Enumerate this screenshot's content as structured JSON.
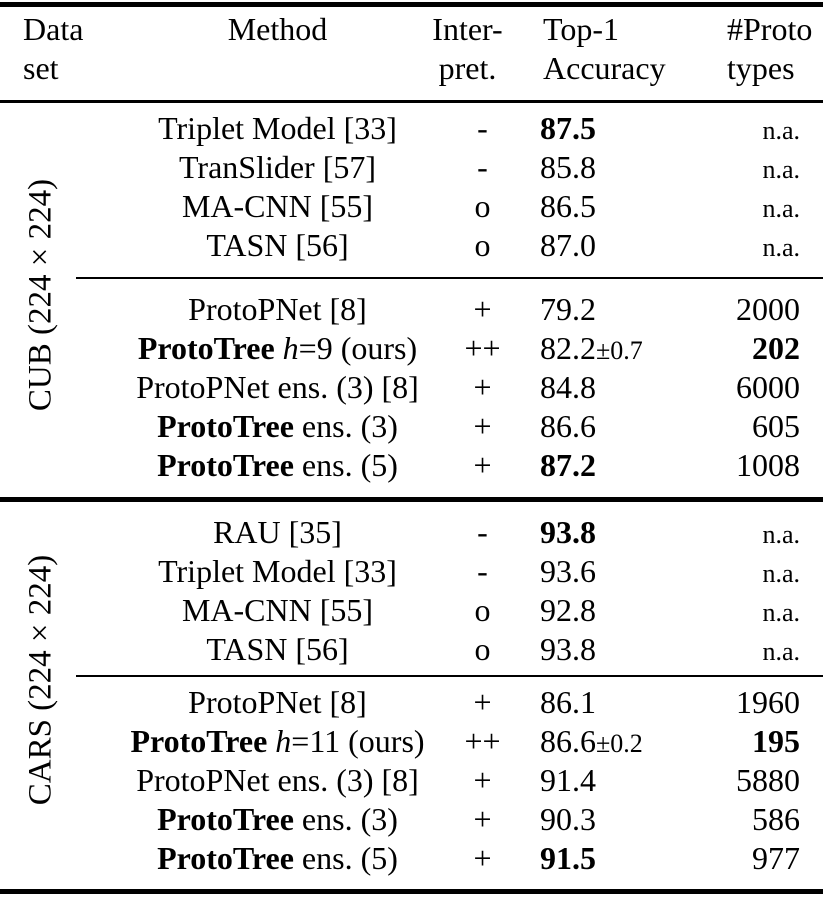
{
  "header": {
    "dataset_line1": "Data",
    "dataset_line2": "set",
    "method": "Method",
    "interpret_line1": "Inter-",
    "interpret_line2": "pret.",
    "accuracy_line1": "Top-1",
    "accuracy_line2": "Accuracy",
    "prototypes_line1": "#Proto",
    "prototypes_line2": "types"
  },
  "text_color": "#000000",
  "groups": [
    {
      "dataset_label": "CUB (224 × 224)",
      "subgroups": [
        {
          "rows": [
            {
              "method": [
                {
                  "t": "Triplet Model [33]"
                }
              ],
              "interpret": "-",
              "acc": "87.5",
              "acc_bold": true,
              "proto": "n.a.",
              "proto_small": true
            },
            {
              "method": [
                {
                  "t": "TranSlider [57]"
                }
              ],
              "interpret": "-",
              "acc": "85.8",
              "proto": "n.a.",
              "proto_small": true
            },
            {
              "method": [
                {
                  "t": "MA-CNN [55]"
                }
              ],
              "interpret": "o",
              "acc": "86.5",
              "proto": "n.a.",
              "proto_small": true
            },
            {
              "method": [
                {
                  "t": "TASN [56]"
                }
              ],
              "interpret": "o",
              "acc": "87.0",
              "proto": "n.a.",
              "proto_small": true
            }
          ]
        },
        {
          "rows": [
            {
              "method": [
                {
                  "t": "ProtoPNet [8]"
                }
              ],
              "interpret": "+",
              "acc": "79.2",
              "proto": "2000"
            },
            {
              "method": [
                {
                  "t": "ProtoTree ",
                  "b": true
                },
                {
                  "t": "h",
                  "i": true
                },
                {
                  "t": "=9 (ours)"
                }
              ],
              "interpret": "++",
              "acc": "82.2",
              "acc_pm": "±0.7",
              "proto": "202",
              "proto_bold": true
            },
            {
              "method": [
                {
                  "t": "ProtoPNet ens. (3) [8]"
                }
              ],
              "interpret": "+",
              "acc": "84.8",
              "proto": "6000"
            },
            {
              "method": [
                {
                  "t": "ProtoTree",
                  "b": true
                },
                {
                  "t": " ens. (3)"
                }
              ],
              "interpret": "+",
              "acc": "86.6",
              "proto": "605"
            },
            {
              "method": [
                {
                  "t": "ProtoTree",
                  "b": true
                },
                {
                  "t": " ens. (5)"
                }
              ],
              "interpret": "+",
              "acc": "87.2",
              "acc_bold": true,
              "proto": "1008"
            }
          ]
        }
      ]
    },
    {
      "dataset_label": "CARS (224 × 224)",
      "subgroups": [
        {
          "rows": [
            {
              "method": [
                {
                  "t": "RAU [35]"
                }
              ],
              "interpret": "-",
              "acc": "93.8",
              "acc_bold": true,
              "proto": "n.a.",
              "proto_small": true
            },
            {
              "method": [
                {
                  "t": "Triplet Model [33]"
                }
              ],
              "interpret": "-",
              "acc": "93.6",
              "proto": "n.a.",
              "proto_small": true
            },
            {
              "method": [
                {
                  "t": "MA-CNN [55]"
                }
              ],
              "interpret": "o",
              "acc": "92.8",
              "proto": "n.a.",
              "proto_small": true
            },
            {
              "method": [
                {
                  "t": "TASN [56]"
                }
              ],
              "interpret": "o",
              "acc": "93.8",
              "proto": "n.a.",
              "proto_small": true
            }
          ]
        },
        {
          "rows": [
            {
              "method": [
                {
                  "t": "ProtoPNet [8]"
                }
              ],
              "interpret": "+",
              "acc": "86.1",
              "proto": "1960"
            },
            {
              "method": [
                {
                  "t": "ProtoTree ",
                  "b": true
                },
                {
                  "t": "h",
                  "i": true
                },
                {
                  "t": "=11 (ours)"
                }
              ],
              "interpret": "++",
              "acc": "86.6",
              "acc_pm": "±0.2",
              "proto": "195",
              "proto_bold": true
            },
            {
              "method": [
                {
                  "t": "ProtoPNet ens. (3) [8]"
                }
              ],
              "interpret": "+",
              "acc": "91.4",
              "proto": "5880"
            },
            {
              "method": [
                {
                  "t": "ProtoTree",
                  "b": true
                },
                {
                  "t": " ens. (3)"
                }
              ],
              "interpret": "+",
              "acc": "90.3",
              "proto": "586"
            },
            {
              "method": [
                {
                  "t": "ProtoTree",
                  "b": true
                },
                {
                  "t": " ens. (5)"
                }
              ],
              "interpret": "+",
              "acc": "91.5",
              "acc_bold": true,
              "proto": "977"
            }
          ]
        }
      ]
    }
  ]
}
